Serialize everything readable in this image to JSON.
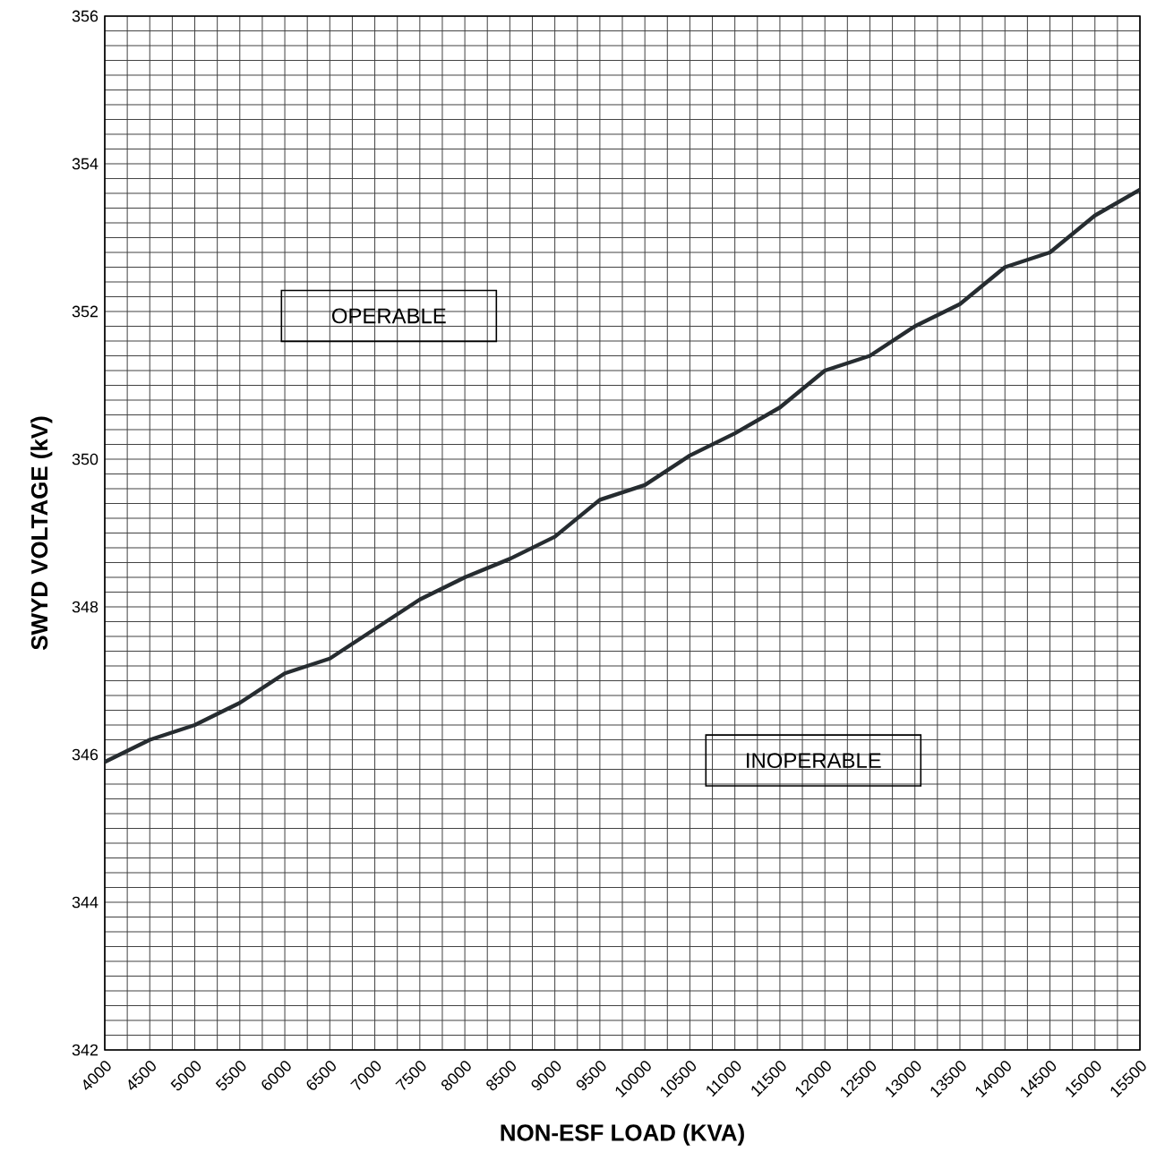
{
  "chart_data": {
    "type": "line",
    "xlabel": "NON-ESF LOAD (KVA)",
    "ylabel": "SWYD VOLTAGE (kV)",
    "x": [
      4000,
      4500,
      5000,
      5500,
      6000,
      6500,
      7000,
      7500,
      8000,
      8500,
      9000,
      9500,
      10000,
      10500,
      11000,
      11500,
      12000,
      12500,
      13000,
      13500,
      14000,
      14500,
      15000,
      15500
    ],
    "series": [
      {
        "color": "#262c30",
        "values": [
          345.9,
          346.2,
          346.4,
          346.7,
          347.1,
          347.3,
          347.7,
          348.1,
          348.4,
          348.65,
          348.95,
          349.45,
          349.65,
          350.05,
          350.35,
          350.7,
          351.2,
          351.4,
          351.8,
          352.1,
          352.6,
          352.8,
          353.3,
          353.65
        ]
      }
    ],
    "xlim": [
      4000,
      15500
    ],
    "ylim": [
      342,
      356
    ],
    "xticks": [
      4000,
      4500,
      5000,
      5500,
      6000,
      6500,
      7000,
      7500,
      8000,
      8500,
      9000,
      9500,
      10000,
      10500,
      11000,
      11500,
      12000,
      12500,
      13000,
      13500,
      14000,
      14500,
      15000,
      15500
    ],
    "yticks": [
      342,
      344,
      346,
      348,
      350,
      352,
      354,
      356
    ],
    "grid": true,
    "marker": "none",
    "line_style": "solid",
    "annotations": [
      "OPERABLE",
      "INOPERABLE"
    ]
  }
}
